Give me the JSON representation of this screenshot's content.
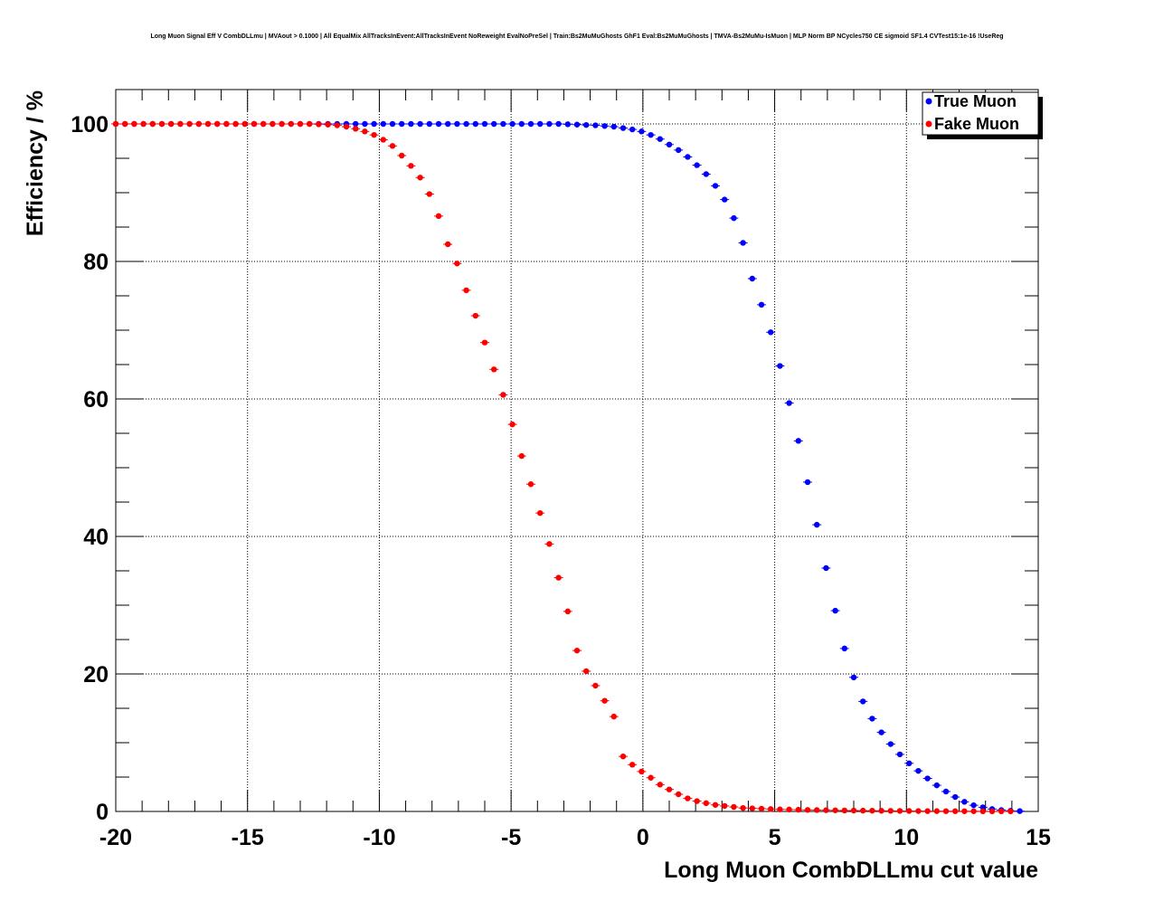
{
  "chart_data": {
    "type": "scatter",
    "title": "Long Muon Signal Eff V CombDLLmu | MVAout > 0.1000 | All EqualMix AllTracksInEvent:AllTracksInEvent NoReweight EvalNoPreSel | Train:Bs2MuMuGhosts GhF1 Eval:Bs2MuMuGhosts | TMVA-Bs2MuMu-IsMuon | MLP Norm BP NCycles750 CE sigmoid SF1.4 CVTest15:1e-16 !UseReg",
    "xlabel": "Long Muon CombDLLmu cut value",
    "ylabel": "Efficiency / %",
    "xlim": [
      -20,
      15
    ],
    "ylim": [
      0,
      105
    ],
    "xticks": [
      -20,
      -15,
      -10,
      -5,
      0,
      5,
      10,
      15
    ],
    "xtick_labels": [
      "-20",
      "-15",
      "-10",
      "-5",
      "0",
      "5",
      "10",
      "15"
    ],
    "yticks": [
      0,
      20,
      40,
      60,
      80,
      100
    ],
    "ytick_labels": [
      "0",
      "20",
      "40",
      "60",
      "80",
      "100"
    ],
    "grid": true,
    "legend_position": "top-right",
    "series": [
      {
        "name": "True Muon",
        "color": "#0000ff",
        "x": [
          -20,
          -19.65,
          -19.3,
          -18.95,
          -18.6,
          -18.25,
          -17.9,
          -17.55,
          -17.2,
          -16.85,
          -16.5,
          -16.15,
          -15.8,
          -15.45,
          -15.1,
          -14.75,
          -14.4,
          -14.05,
          -13.7,
          -13.35,
          -13,
          -12.65,
          -12.3,
          -11.95,
          -11.6,
          -11.25,
          -10.9,
          -10.55,
          -10.2,
          -9.85,
          -9.5,
          -9.15,
          -8.8,
          -8.45,
          -8.1,
          -7.75,
          -7.4,
          -7.05,
          -6.7,
          -6.35,
          -6,
          -5.65,
          -5.3,
          -4.95,
          -4.6,
          -4.25,
          -3.9,
          -3.55,
          -3.2,
          -2.85,
          -2.5,
          -2.15,
          -1.8,
          -1.45,
          -1.1,
          -0.75,
          -0.4,
          -0.05,
          0.3,
          0.65,
          1,
          1.35,
          1.7,
          2.05,
          2.4,
          2.75,
          3.1,
          3.45,
          3.8,
          4.15,
          4.5,
          4.85,
          5.2,
          5.55,
          5.9,
          6.25,
          6.6,
          6.95,
          7.3,
          7.65,
          8,
          8.35,
          8.7,
          9.05,
          9.4,
          9.75,
          10.1,
          10.45,
          10.8,
          11.15,
          11.5,
          11.85,
          12.2,
          12.55,
          12.9,
          13.25,
          13.6,
          13.95,
          14.3
        ],
        "y": [
          100,
          100,
          100,
          100,
          100,
          100,
          100,
          100,
          100,
          100,
          100,
          100,
          100,
          100,
          100,
          100,
          100,
          100,
          100,
          100,
          100,
          100,
          100,
          100,
          100,
          100,
          100,
          100,
          100,
          100,
          100,
          100,
          100,
          100,
          100,
          100,
          100,
          100,
          100,
          100,
          100,
          100,
          100,
          100,
          100,
          100,
          100,
          100,
          100,
          99.95,
          99.9,
          99.85,
          99.8,
          99.7,
          99.6,
          99.4,
          99.2,
          98.9,
          98.4,
          97.8,
          97,
          96.2,
          95.2,
          94,
          92.7,
          91,
          89,
          86.3,
          82.7,
          77.5,
          73.7,
          69.7,
          64.8,
          59.4,
          53.9,
          47.9,
          41.7,
          35.4,
          29.2,
          23.7,
          19.5,
          16,
          13.5,
          11.5,
          9.8,
          8.3,
          7,
          5.9,
          4.8,
          3.8,
          2.9,
          2.1,
          1.4,
          0.9,
          0.6,
          0.35,
          0.2,
          0.1,
          0.05
        ]
      },
      {
        "name": "Fake Muon",
        "color": "#ff0000",
        "x": [
          -20,
          -19.65,
          -19.3,
          -18.95,
          -18.6,
          -18.25,
          -17.9,
          -17.55,
          -17.2,
          -16.85,
          -16.5,
          -16.15,
          -15.8,
          -15.45,
          -15.1,
          -14.75,
          -14.4,
          -14.05,
          -13.7,
          -13.35,
          -13,
          -12.65,
          -12.3,
          -11.95,
          -11.6,
          -11.25,
          -10.9,
          -10.55,
          -10.2,
          -9.85,
          -9.5,
          -9.15,
          -8.8,
          -8.45,
          -8.1,
          -7.75,
          -7.4,
          -7.05,
          -6.7,
          -6.35,
          -6,
          -5.65,
          -5.3,
          -4.95,
          -4.6,
          -4.25,
          -3.9,
          -3.55,
          -3.2,
          -2.85,
          -2.5,
          -2.15,
          -1.8,
          -1.45,
          -1.1,
          -0.75,
          -0.4,
          -0.05,
          0.3,
          0.65,
          1,
          1.35,
          1.7,
          2.05,
          2.4,
          2.75,
          3.1,
          3.45,
          3.8,
          4.15,
          4.5,
          4.85,
          5.2,
          5.55,
          5.9,
          6.25,
          6.6,
          6.95,
          7.3,
          7.65,
          8,
          8.35,
          8.7,
          9.05,
          9.4,
          9.75,
          10.1,
          10.45,
          10.8,
          11.15,
          11.5,
          11.85,
          12.2,
          12.55,
          12.9,
          13.25,
          13.6,
          13.95
        ],
        "y": [
          100,
          100,
          100,
          100,
          100,
          100,
          100,
          100,
          100,
          100,
          100,
          100,
          100,
          100,
          100,
          100,
          100,
          100,
          100,
          100,
          100,
          100,
          99.95,
          99.9,
          99.8,
          99.6,
          99.3,
          98.9,
          98.4,
          97.7,
          96.8,
          95.4,
          93.9,
          92.2,
          89.8,
          86.6,
          82.5,
          79.7,
          75.8,
          72.1,
          68.2,
          64.3,
          60.6,
          56.3,
          51.7,
          47.6,
          43.4,
          38.9,
          34,
          29.1,
          23.4,
          20.4,
          18.3,
          16.1,
          13.8,
          8,
          6.8,
          5.8,
          4.9,
          3.9,
          3.2,
          2.5,
          1.9,
          1.5,
          1.2,
          0.95,
          0.8,
          0.65,
          0.5,
          0.45,
          0.4,
          0.35,
          0.3,
          0.28,
          0.25,
          0.22,
          0.2,
          0.18,
          0.16,
          0.14,
          0.13,
          0.12,
          0.11,
          0.1,
          0.09,
          0.08,
          0.07,
          0.06,
          0.05,
          0.05,
          0.04,
          0.04,
          0.03,
          0.03,
          0.02,
          0.02,
          0.02,
          0.01
        ]
      }
    ]
  }
}
